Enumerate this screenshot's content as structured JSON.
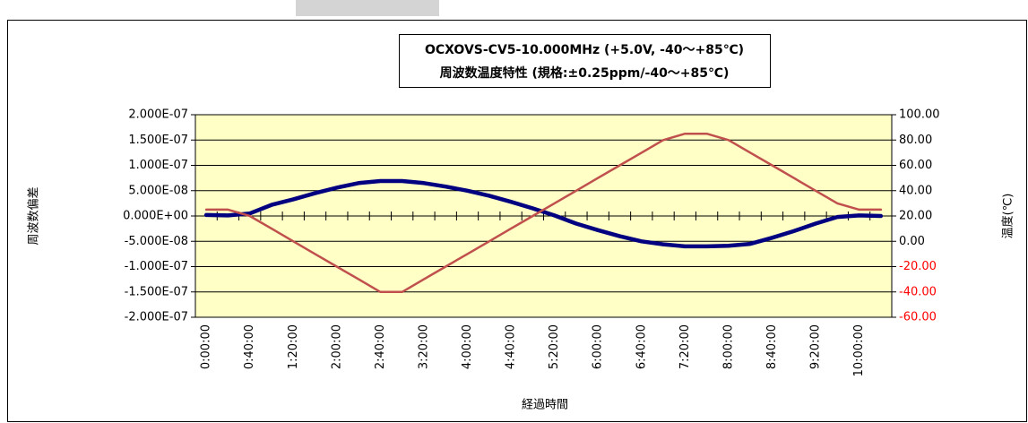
{
  "chart_data": {
    "type": "line",
    "title_lines": [
      "OCXOVS-CV5-10.000MHz (+5.0V, -40～+85℃)",
      "周波数温度特性 (規格:±0.25ppm/-40～+85℃)"
    ],
    "x_label": "経過時間",
    "y_label": "周波数偏差",
    "y2_label": "温度(℃)",
    "categories": [
      "0:00:00",
      null,
      "0:40:00",
      null,
      "1:20:00",
      null,
      "2:00:00",
      null,
      "2:40:00",
      null,
      "3:20:00",
      null,
      "4:00:00",
      null,
      "4:40:00",
      null,
      "5:20:00",
      null,
      "6:00:00",
      null,
      "6:40:00",
      null,
      "7:20:00",
      null,
      "8:00:00",
      null,
      "8:40:00",
      null,
      "9:20:00",
      null,
      "10:00:00",
      null
    ],
    "series": [
      {
        "name": "周波数偏差",
        "color": "#000080",
        "axis": "y",
        "values": [
          2e-09,
          1e-09,
          5e-09,
          2.2e-08,
          3.3e-08,
          4.5e-08,
          5.6e-08,
          6.5e-08,
          6.9e-08,
          6.9e-08,
          6.5e-08,
          5.8e-08,
          5e-08,
          4e-08,
          2.8e-08,
          1.5e-08,
          1e-09,
          -1.5e-08,
          -2.8e-08,
          -4e-08,
          -5e-08,
          -5.6e-08,
          -6e-08,
          -6e-08,
          -5.9e-08,
          -5.5e-08,
          -4.3e-08,
          -3e-08,
          -1.5e-08,
          -2e-09,
          1e-09,
          0
        ]
      },
      {
        "name": "温度",
        "color": "#c0504d",
        "axis": "y2",
        "values": [
          25,
          25,
          20,
          10,
          0,
          -10,
          -20,
          -30,
          -40,
          -40,
          -30,
          -20,
          -10,
          0,
          10,
          20,
          30,
          40,
          50,
          60,
          70,
          80,
          85,
          85,
          80,
          70,
          60,
          50,
          40,
          30,
          25,
          25
        ]
      }
    ],
    "ylim": [
      -2e-07,
      2e-07
    ],
    "yticks": [
      {
        "value": -2e-07,
        "label": "-2.000E-07"
      },
      {
        "value": -1.5e-07,
        "label": "-1.500E-07"
      },
      {
        "value": -1e-07,
        "label": "-1.000E-07"
      },
      {
        "value": -5e-08,
        "label": "-5.000E-08"
      },
      {
        "value": 0,
        "label": "0.000E+00"
      },
      {
        "value": 5e-08,
        "label": "5.000E-08"
      },
      {
        "value": 1e-07,
        "label": "1.000E-07"
      },
      {
        "value": 1.5e-07,
        "label": "1.500E-07"
      },
      {
        "value": 2e-07,
        "label": "2.000E-07"
      }
    ],
    "y2lim": [
      -60,
      100
    ],
    "y2ticks": [
      {
        "value": -60,
        "label": "-60.00"
      },
      {
        "value": -40,
        "label": "-40.00"
      },
      {
        "value": -20,
        "label": "-20.00"
      },
      {
        "value": 0,
        "label": "0.00"
      },
      {
        "value": 20,
        "label": "20.00"
      },
      {
        "value": 40,
        "label": "40.00"
      },
      {
        "value": 60,
        "label": "60.00"
      },
      {
        "value": 80,
        "label": "80.00"
      },
      {
        "value": 100,
        "label": "100.00"
      }
    ],
    "y2_negative_color": "#ff0000",
    "plot_background": "#ffffc6",
    "grid": true
  }
}
